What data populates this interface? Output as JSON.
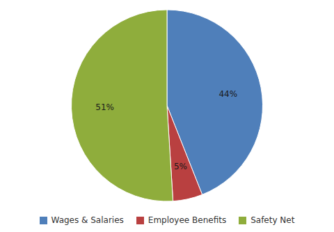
{
  "chart_data": {
    "type": "pie",
    "categories": [
      "Wages & Salaries",
      "Employee Benefits",
      "Safety Net"
    ],
    "values": [
      44,
      5,
      51
    ],
    "colors": [
      "#4f7fba",
      "#b94040",
      "#8fad3c"
    ],
    "data_labels": true,
    "value_labels": [
      "44%",
      "5%",
      "51%"
    ],
    "legend": "bottom"
  }
}
